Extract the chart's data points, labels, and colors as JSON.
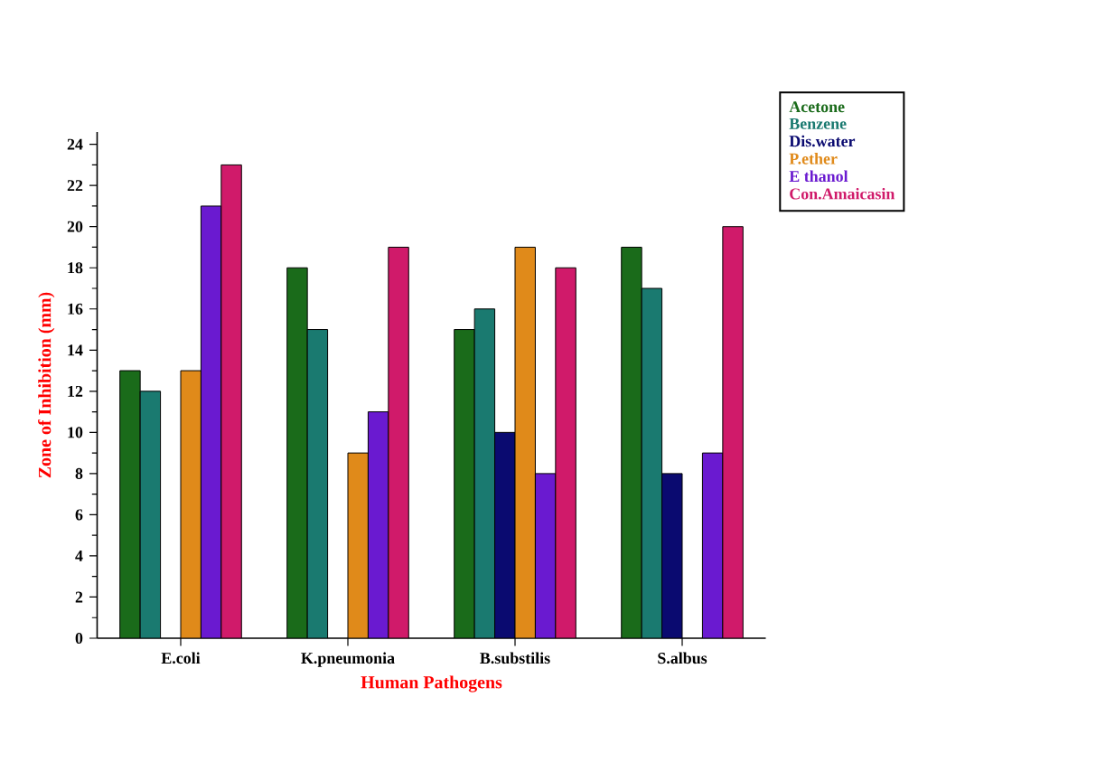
{
  "chart_data": {
    "type": "bar",
    "xlabel": "Human Pathogens",
    "ylabel": "Zone of Inhibition (mm)",
    "categories": [
      "E.coli",
      "K.pneumonia",
      "B.substilis",
      "S.albus"
    ],
    "series": [
      {
        "name": "Acetone",
        "color": "#1a6b1a",
        "values": [
          13,
          18,
          15,
          19
        ]
      },
      {
        "name": "Benzene",
        "color": "#1a7a70",
        "values": [
          12,
          15,
          16,
          17
        ]
      },
      {
        "name": "Dis.water",
        "color": "#0a0a70",
        "values": [
          null,
          null,
          10,
          8
        ]
      },
      {
        "name": "P.ether",
        "color": "#e08a1a",
        "values": [
          13,
          9,
          19,
          null
        ]
      },
      {
        "name": "E thanol",
        "color": "#6a1ad0",
        "values": [
          21,
          11,
          8,
          9
        ]
      },
      {
        "name": "Con.Amaicasin",
        "color": "#d01a6a",
        "values": [
          23,
          19,
          18,
          20
        ]
      }
    ],
    "ylim": [
      0,
      24.6
    ],
    "yticks": [
      0,
      2,
      4,
      6,
      8,
      10,
      12,
      14,
      16,
      18,
      20,
      22,
      24
    ],
    "grid": false,
    "legend": "top right"
  }
}
